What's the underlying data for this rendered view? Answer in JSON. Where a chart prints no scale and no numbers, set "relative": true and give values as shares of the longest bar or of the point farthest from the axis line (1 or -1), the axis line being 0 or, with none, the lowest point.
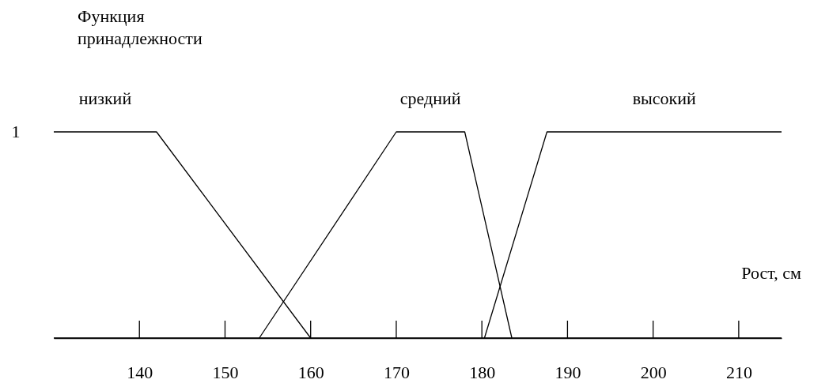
{
  "chart_data": {
    "type": "line",
    "xlabel": "Рост, см",
    "ylabel": "Функция\nпринадлежности",
    "series": [
      {
        "name": "низкий",
        "color": "#000000",
        "x": [
          130,
          142,
          160
        ],
        "values": [
          1,
          1,
          0
        ]
      },
      {
        "name": "средний",
        "color": "#000000",
        "x": [
          154,
          170,
          178,
          183.5
        ],
        "values": [
          0,
          1,
          1,
          0
        ]
      },
      {
        "name": "высокий",
        "color": "#000000",
        "x": [
          180.3,
          187.6,
          215
        ],
        "values": [
          0,
          1,
          1
        ]
      }
    ],
    "xlim": [
      130,
      215
    ],
    "xticks": [
      140,
      150,
      160,
      170,
      180,
      190,
      200,
      210
    ],
    "relative": true,
    "annotations": [
      "1"
    ],
    "grid": false,
    "legend": false,
    "marker": "none",
    "line_style": "solid"
  }
}
